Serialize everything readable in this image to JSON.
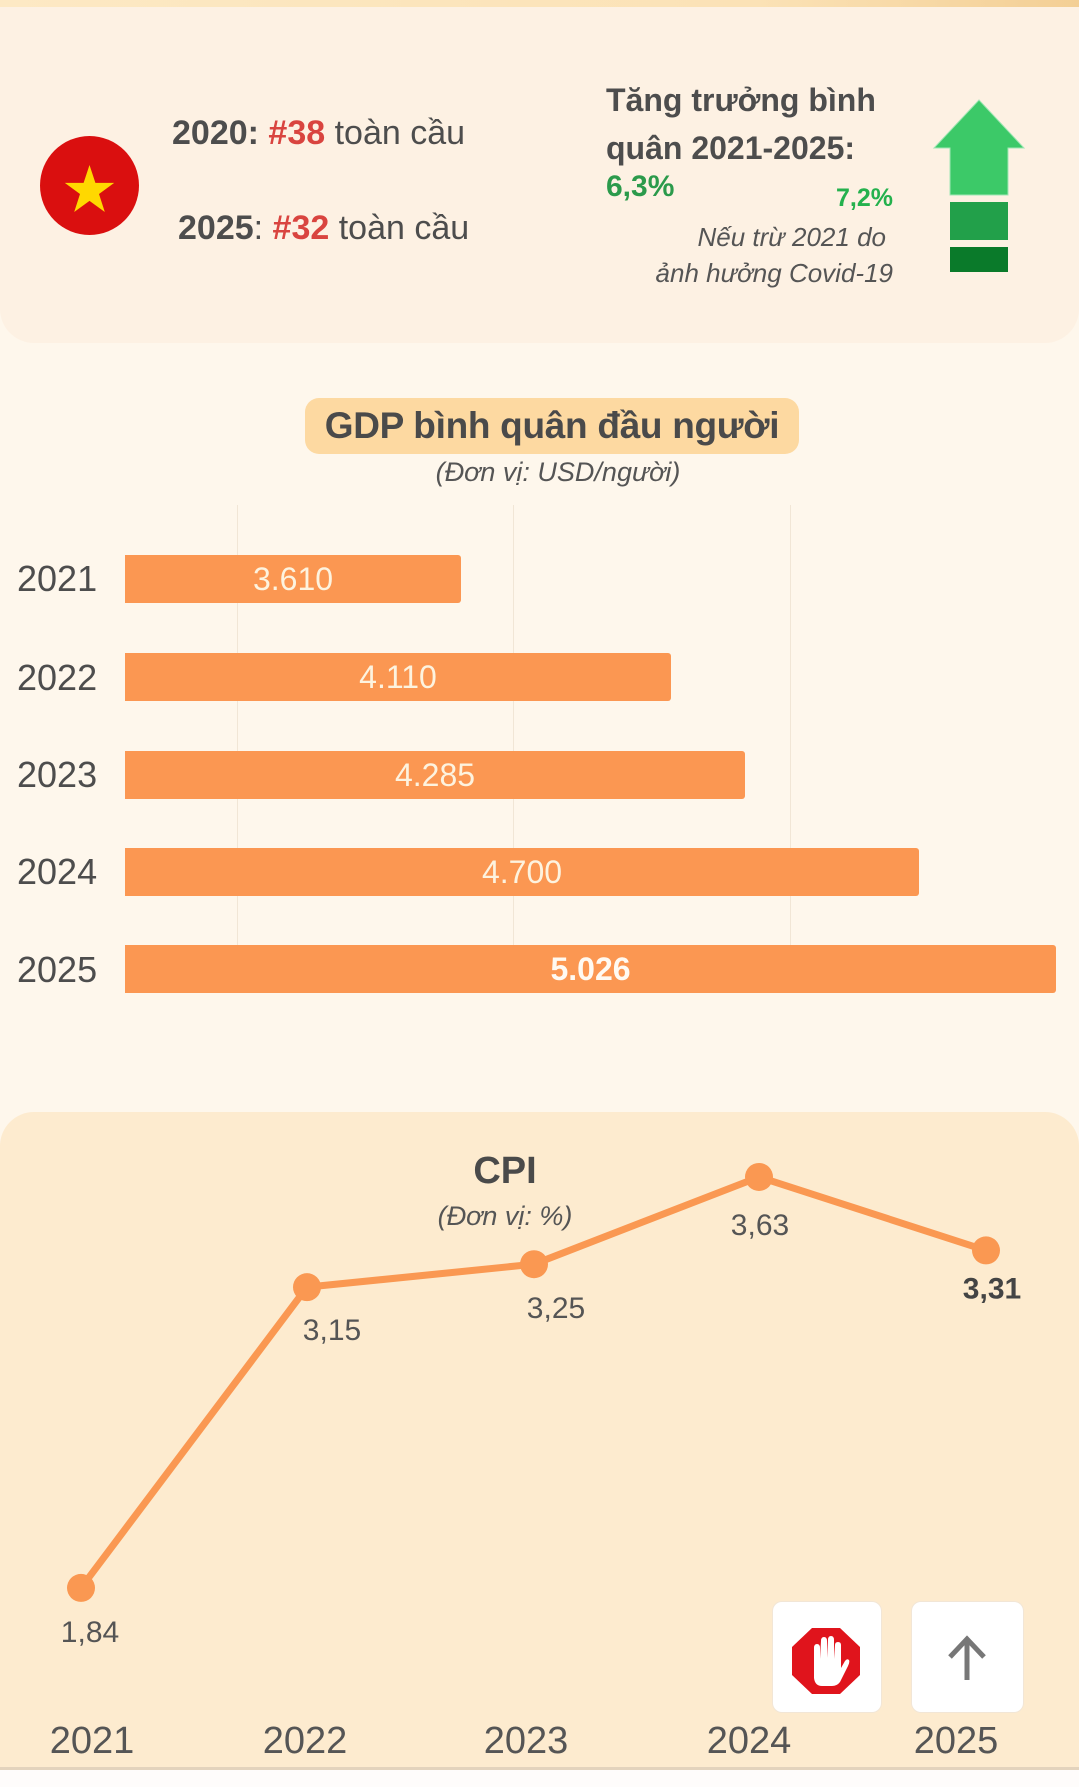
{
  "header": {
    "flag_icon": "vietnam-flag-icon",
    "rank_2020": {
      "year": "2020",
      "colon": ":",
      "rank": "#38",
      "suffix": "toàn cầu"
    },
    "rank_2025": {
      "year": "2025",
      "colon": ":",
      "rank": "#32",
      "suffix": "toàn cầu"
    },
    "growth_title_line1": "Tăng trưởng bình",
    "growth_title_line2": "quân 2021-2025:",
    "growth_value": "6,3%",
    "growth_value_excl": "7,2%",
    "note_line1": "Nếu trừ 2021 do",
    "note_line2": "ảnh hưởng Covid-19",
    "arrow_icon": "growth-up-arrow-icon",
    "colors": {
      "rank": "#d9443f",
      "growth": "#2b9a4b",
      "growth_alt": "#24b14d"
    }
  },
  "chart_data": [
    {
      "type": "bar",
      "orientation": "horizontal",
      "title": "GDP bình quân đầu người",
      "subtitle": "(Đơn vị: USD/người)",
      "categories": [
        "2021",
        "2022",
        "2023",
        "2024",
        "2025"
      ],
      "values": [
        3610,
        4110,
        4285,
        4700,
        5026
      ],
      "value_labels": [
        "3.610",
        "4.110",
        "4.285",
        "4.700",
        "5.026"
      ],
      "xlim": [
        2810,
        5026
      ],
      "grid": true,
      "bar_color": "#fb9752"
    },
    {
      "type": "line",
      "title": "CPI",
      "subtitle": "(Đơn vị: %)",
      "categories": [
        "2021",
        "2022",
        "2023",
        "2024",
        "2025"
      ],
      "values": [
        1.84,
        3.15,
        3.25,
        3.63,
        3.31
      ],
      "value_labels": [
        "1,84",
        "3,15",
        "3,25",
        "3,63",
        "3,31"
      ],
      "ylim": [
        1.5,
        4.0
      ],
      "grid": false,
      "line_color": "#fa9852"
    }
  ],
  "controls": {
    "stop_icon": "stop-hand-icon",
    "scroll_top_icon": "arrow-up-icon"
  }
}
